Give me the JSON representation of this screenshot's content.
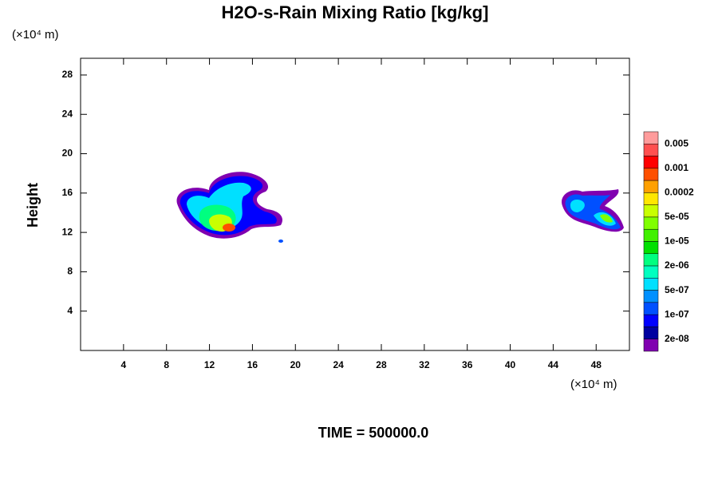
{
  "chart_data": {
    "type": "contour",
    "title": "H2O-s-Rain Mixing Ratio [kg/kg]",
    "y_label": "Height",
    "y_unit": "(×10⁴ m)",
    "x_unit": "(×10⁴ m)",
    "footer": "TIME = 500000.0",
    "xlim": [
      0,
      51.1
    ],
    "xticks": [
      4,
      8,
      12,
      16,
      20,
      24,
      28,
      32,
      36,
      40,
      44,
      48
    ],
    "ylim": [
      0,
      29.7
    ],
    "yticks": [
      4,
      8,
      12,
      16,
      20,
      24,
      28
    ],
    "colorbar": {
      "colors": [
        "#ff9c9c",
        "#ff5050",
        "#ff0000",
        "#ff5000",
        "#ffa000",
        "#ffe600",
        "#c8ff00",
        "#80ff00",
        "#40f000",
        "#00e000",
        "#00ff80",
        "#00ffc0",
        "#00e0ff",
        "#0090ff",
        "#0050ff",
        "#0000ff",
        "#0000a0",
        "#8000b0"
      ],
      "labels": [
        0.005,
        0.001,
        0.0002,
        {
          "value": 5e-05,
          "label": "5e-05"
        },
        {
          "value": 1e-05,
          "label": "1e-05"
        },
        {
          "value": 2e-06,
          "label": "2e-06"
        },
        {
          "value": 5e-07,
          "label": "5e-07"
        },
        {
          "value": 1e-07,
          "label": "1e-07"
        },
        {
          "value": 2e-08,
          "label": "2e-08"
        }
      ]
    }
  }
}
